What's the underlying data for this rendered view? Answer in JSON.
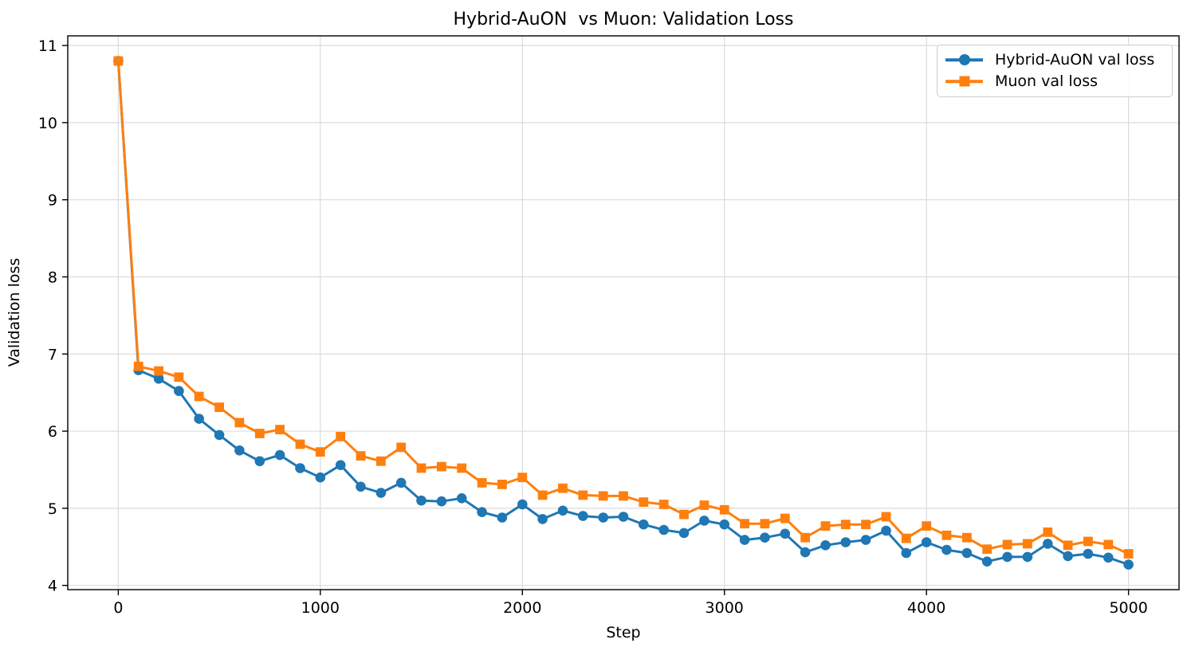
{
  "chart_data": {
    "type": "line",
    "title": "Hybrid-AuON  vs Muon: Validation Loss",
    "xlabel": "Step",
    "ylabel": "Validation loss",
    "xlim": [
      -250,
      5250
    ],
    "ylim": [
      3.945,
      11.125
    ],
    "xticks": [
      0,
      1000,
      2000,
      3000,
      4000,
      5000
    ],
    "yticks": [
      4,
      5,
      6,
      7,
      8,
      9,
      10,
      11
    ],
    "grid": true,
    "grid_color": "#dcdcdc",
    "spine_color": "#000000",
    "legend": {
      "position": "upper-right",
      "border_color": "#cccccc",
      "background": "#ffffff"
    },
    "x": [
      0,
      100,
      200,
      300,
      400,
      500,
      600,
      700,
      800,
      900,
      1000,
      1100,
      1200,
      1300,
      1400,
      1500,
      1600,
      1700,
      1800,
      1900,
      2000,
      2100,
      2200,
      2300,
      2400,
      2500,
      2600,
      2700,
      2800,
      2900,
      3000,
      3100,
      3200,
      3300,
      3400,
      3500,
      3600,
      3700,
      3800,
      3900,
      4000,
      4100,
      4200,
      4300,
      4400,
      4500,
      4600,
      4700,
      4800,
      4900,
      5000
    ],
    "series": [
      {
        "name": "hybrid-auon",
        "label": "Hybrid-AuON val loss",
        "color": "#1f77b4",
        "marker": "circle",
        "values": [
          10.8,
          6.79,
          6.68,
          6.52,
          6.16,
          5.95,
          5.75,
          5.61,
          5.69,
          5.52,
          5.4,
          5.56,
          5.28,
          5.2,
          5.33,
          5.1,
          5.09,
          5.13,
          4.95,
          4.88,
          5.05,
          4.86,
          4.97,
          4.9,
          4.88,
          4.89,
          4.79,
          4.72,
          4.68,
          4.84,
          4.79,
          4.59,
          4.62,
          4.67,
          4.43,
          4.52,
          4.56,
          4.59,
          4.71,
          4.42,
          4.56,
          4.46,
          4.42,
          4.31,
          4.37,
          4.37,
          4.54,
          4.38,
          4.41,
          4.36,
          4.27
        ]
      },
      {
        "name": "muon",
        "label": "Muon val loss",
        "color": "#ff7f0e",
        "marker": "square",
        "values": [
          10.8,
          6.84,
          6.78,
          6.7,
          6.45,
          6.31,
          6.11,
          5.97,
          6.02,
          5.83,
          5.73,
          5.93,
          5.68,
          5.61,
          5.79,
          5.52,
          5.54,
          5.52,
          5.33,
          5.31,
          5.4,
          5.17,
          5.26,
          5.17,
          5.16,
          5.16,
          5.08,
          5.05,
          4.92,
          5.04,
          4.98,
          4.8,
          4.8,
          4.87,
          4.62,
          4.77,
          4.79,
          4.79,
          4.89,
          4.61,
          4.77,
          4.65,
          4.62,
          4.47,
          4.53,
          4.54,
          4.69,
          4.52,
          4.57,
          4.53,
          4.41
        ]
      }
    ]
  }
}
